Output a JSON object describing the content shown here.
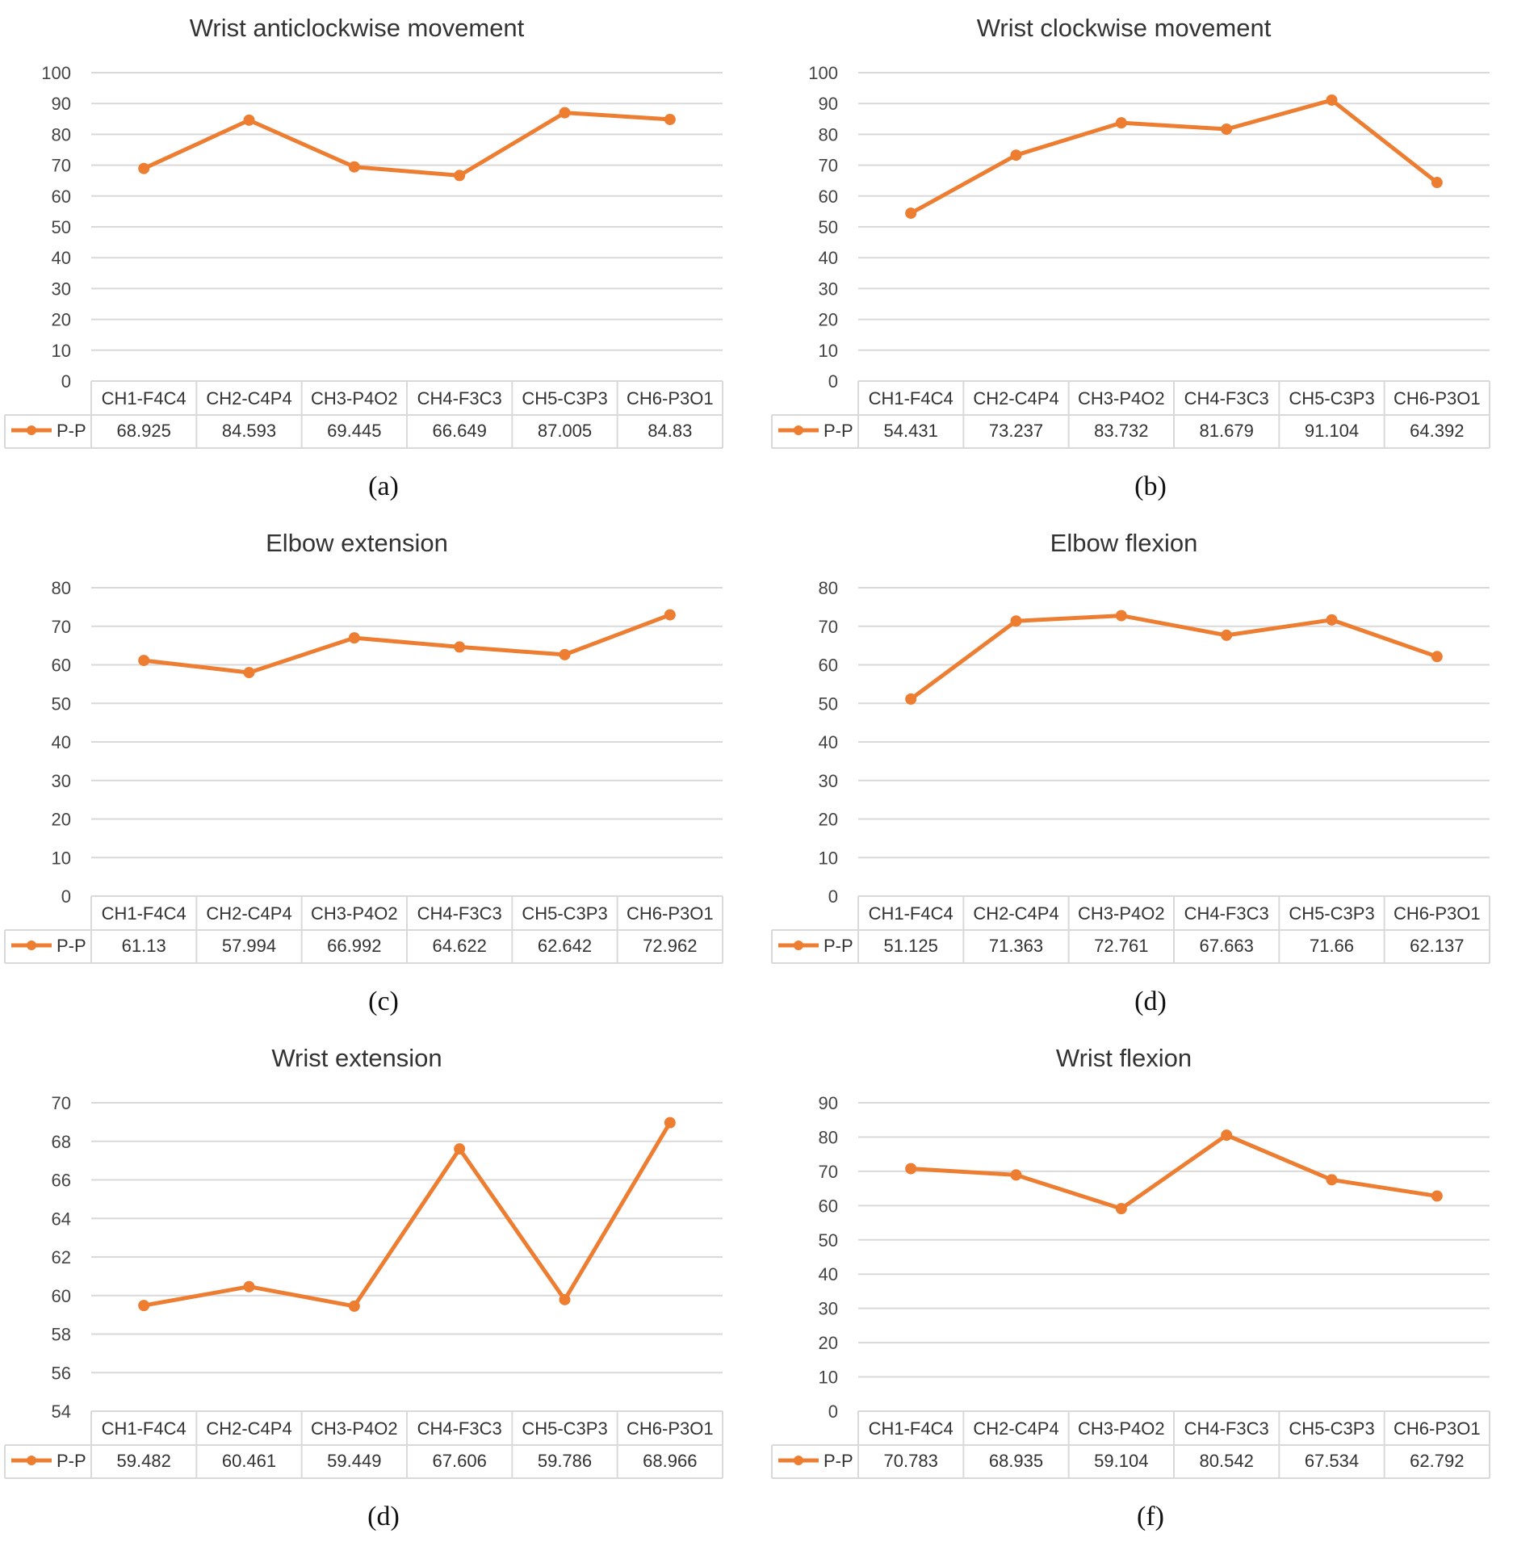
{
  "colors": {
    "series": "#ED7D31",
    "grid": "#D9D9D9",
    "text": "#333333"
  },
  "chart_data": [
    {
      "type": "line",
      "title": "Wrist anticlockwise movement",
      "caption": "(a)",
      "categories": [
        "CH1-F4C4",
        "CH2-C4P4",
        "CH3-P4O2",
        "CH4-F3C3",
        "CH5-C3P3",
        "CH6-P3O1"
      ],
      "series": [
        {
          "name": "P-P",
          "values": [
            68.925,
            84.593,
            69.445,
            66.649,
            87.005,
            84.83
          ],
          "labels": [
            "68.925",
            "84.593",
            "69.445",
            "66.649",
            "87.005",
            "84.83"
          ]
        }
      ],
      "ylim": [
        0,
        100
      ],
      "yticks": [
        "0",
        "10",
        "20",
        "30",
        "40",
        "50",
        "60",
        "70",
        "80",
        "90",
        "100"
      ]
    },
    {
      "type": "line",
      "title": "Wrist clockwise movement",
      "caption": "(b)",
      "categories": [
        "CH1-F4C4",
        "CH2-C4P4",
        "CH3-P4O2",
        "CH4-F3C3",
        "CH5-C3P3",
        "CH6-P3O1"
      ],
      "series": [
        {
          "name": "P-P",
          "values": [
            54.431,
            73.237,
            83.732,
            81.679,
            91.104,
            64.392
          ],
          "labels": [
            "54.431",
            "73.237",
            "83.732",
            "81.679",
            "91.104",
            "64.392"
          ]
        }
      ],
      "ylim": [
        0,
        100
      ],
      "yticks": [
        "0",
        "10",
        "20",
        "30",
        "40",
        "50",
        "60",
        "70",
        "80",
        "90",
        "100"
      ]
    },
    {
      "type": "line",
      "title": "Elbow extension",
      "caption": "(c)",
      "categories": [
        "CH1-F4C4",
        "CH2-C4P4",
        "CH3-P4O2",
        "CH4-F3C3",
        "CH5-C3P3",
        "CH6-P3O1"
      ],
      "series": [
        {
          "name": "P-P",
          "values": [
            61.13,
            57.994,
            66.992,
            64.622,
            62.642,
            72.962
          ],
          "labels": [
            "61.13",
            "57.994",
            "66.992",
            "64.622",
            "62.642",
            "72.962"
          ]
        }
      ],
      "ylim": [
        0,
        80
      ],
      "yticks": [
        "0",
        "10",
        "20",
        "30",
        "40",
        "50",
        "60",
        "70",
        "80"
      ]
    },
    {
      "type": "line",
      "title": "Elbow flexion",
      "caption": "(d)",
      "categories": [
        "CH1-F4C4",
        "CH2-C4P4",
        "CH3-P4O2",
        "CH4-F3C3",
        "CH5-C3P3",
        "CH6-P3O1"
      ],
      "series": [
        {
          "name": "P-P",
          "values": [
            51.125,
            71.363,
            72.761,
            67.663,
            71.66,
            62.137
          ],
          "labels": [
            "51.125",
            "71.363",
            "72.761",
            "67.663",
            "71.66",
            "62.137"
          ]
        }
      ],
      "ylim": [
        0,
        80
      ],
      "yticks": [
        "0",
        "10",
        "20",
        "30",
        "40",
        "50",
        "60",
        "70",
        "80"
      ]
    },
    {
      "type": "line",
      "title": "Wrist extension",
      "caption": "(d)",
      "categories": [
        "CH1-F4C4",
        "CH2-C4P4",
        "CH3-P4O2",
        "CH4-F3C3",
        "CH5-C3P3",
        "CH6-P3O1"
      ],
      "series": [
        {
          "name": "P-P",
          "values": [
            59.482,
            60.461,
            59.449,
            67.606,
            59.786,
            68.966
          ],
          "labels": [
            "59.482",
            "60.461",
            "59.449",
            "67.606",
            "59.786",
            "68.966"
          ]
        }
      ],
      "ylim": [
        54,
        70
      ],
      "yticks": [
        "54",
        "56",
        "58",
        "60",
        "62",
        "64",
        "66",
        "68",
        "70"
      ]
    },
    {
      "type": "line",
      "title": "Wrist flexion",
      "caption": "(f)",
      "categories": [
        "CH1-F4C4",
        "CH2-C4P4",
        "CH3-P4O2",
        "CH4-F3C3",
        "CH5-C3P3",
        "CH6-P3O1"
      ],
      "series": [
        {
          "name": "P-P",
          "values": [
            70.783,
            68.935,
            59.104,
            80.542,
            67.534,
            62.792
          ],
          "labels": [
            "70.783",
            "68.935",
            "59.104",
            "80.542",
            "67.534",
            "62.792"
          ]
        }
      ],
      "ylim": [
        0,
        90
      ],
      "yticks": [
        "0",
        "10",
        "20",
        "30",
        "40",
        "50",
        "60",
        "70",
        "80",
        "90"
      ]
    }
  ]
}
